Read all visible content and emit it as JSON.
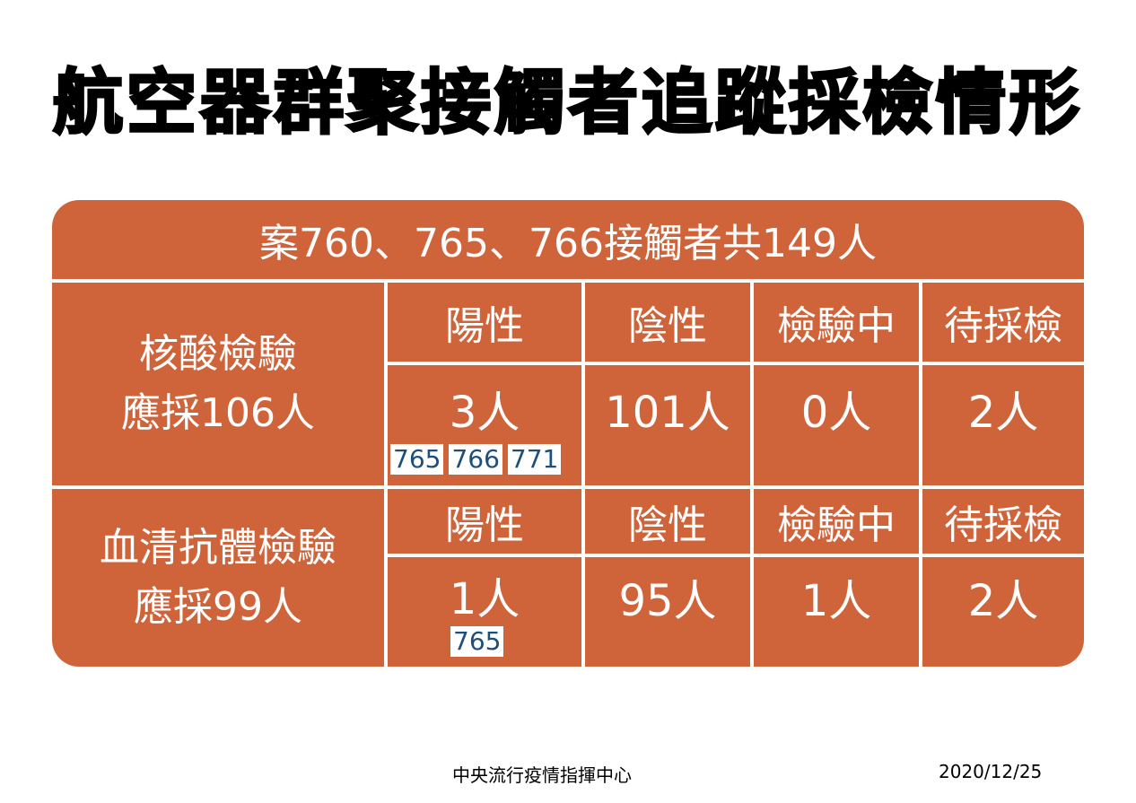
{
  "title": "航空器群聚接觸者追蹤採檢情形",
  "table": {
    "header": "案760、765、766接觸者共149人",
    "columns": [
      "陽性",
      "陰性",
      "檢驗中",
      "待採檢"
    ],
    "sections": [
      {
        "label_line1": "核酸檢驗",
        "label_line2": "應採106人",
        "columns": [
          "陽性",
          "陰性",
          "檢驗中",
          "待採檢"
        ],
        "values": [
          "3人",
          "101人",
          "0人",
          "2人"
        ],
        "positive_cases": [
          "765",
          "766",
          "771"
        ]
      },
      {
        "label_line1": "血清抗體檢驗",
        "label_line2": "應採99人",
        "columns": [
          "陽性",
          "陰性",
          "檢驗中",
          "待採檢"
        ],
        "values": [
          "1人",
          "95人",
          "1人",
          "2人"
        ],
        "positive_cases": [
          "765"
        ]
      }
    ]
  },
  "footer": {
    "organization": "中央流行疫情指揮中心",
    "date": "2020/12/25"
  },
  "colors": {
    "panel_background": "#cf643b",
    "line_color": "#ffffff",
    "tag_text": "#1e4f7a"
  }
}
